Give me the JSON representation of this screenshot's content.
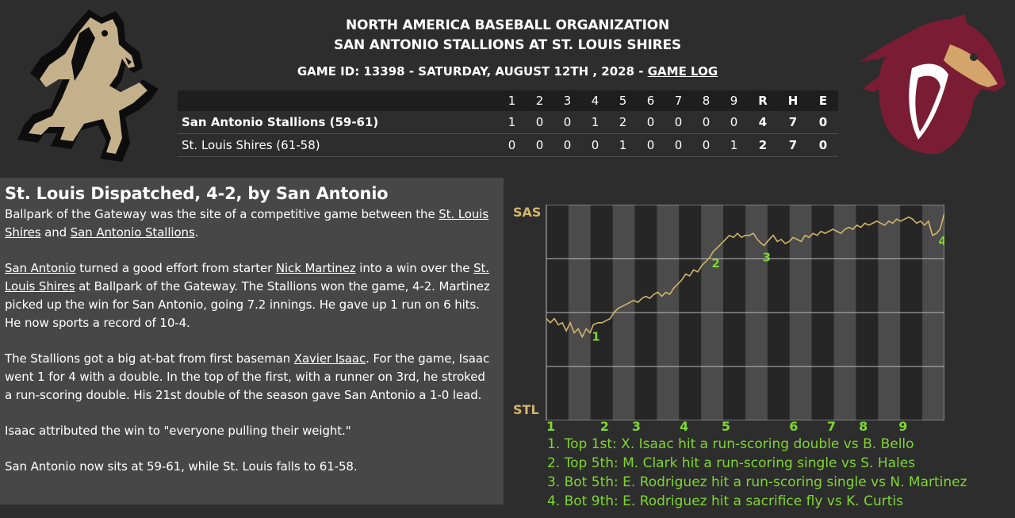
{
  "header": {
    "org": "NORTH AMERICA BASEBALL ORGANIZATION",
    "matchup": "SAN ANTONIO STALLIONS AT ST. LOUIS SHIRES",
    "game_info": "GAME ID: 13398 - SATURDAY, AUGUST 12TH , 2028 -",
    "game_log_link": "GAME LOG"
  },
  "logos": {
    "away_icon": "stallion-logo-gold",
    "home_icon": "stallion-logo-maroon",
    "away_color": "#c4b08a",
    "home_color": "#7a1c34"
  },
  "linescore": {
    "columns": [
      "1",
      "2",
      "3",
      "4",
      "5",
      "6",
      "7",
      "8",
      "9",
      "R",
      "H",
      "E"
    ],
    "rows": [
      {
        "team": "San Antonio Stallions (59-61)",
        "innings": [
          "1",
          "0",
          "0",
          "1",
          "2",
          "0",
          "0",
          "0",
          "0"
        ],
        "r": "4",
        "h": "7",
        "e": "0"
      },
      {
        "team": "St. Louis Shires (61-58)",
        "innings": [
          "0",
          "0",
          "0",
          "0",
          "1",
          "0",
          "0",
          "0",
          "1"
        ],
        "r": "2",
        "h": "7",
        "e": "0"
      }
    ]
  },
  "story": {
    "headline": "St. Louis Dispatched, 4-2, by San Antonio",
    "p1_a": "Ballpark of the Gateway was the site of a competitive game between the ",
    "p1_link1": "St. Louis Shires",
    "p1_b": " and ",
    "p1_link2": "San Antonio Stallions",
    "p1_c": ".",
    "p2_link1": "San Antonio",
    "p2_a": " turned a good effort from starter ",
    "p2_link2": "Nick Martinez",
    "p2_b": " into a win over the ",
    "p2_link3": "St. Louis Shires",
    "p2_c": " at Ballpark of the Gateway. The Stallions won the game, 4-2. Martinez picked up the win for San Antonio, going 7.2 innings. He gave up 1 run on 6 hits. He now sports a record of 10-4.",
    "p3_a": "The Stallions got a big at-bat from first baseman ",
    "p3_link": "Xavier Isaac",
    "p3_b": ". For the game, Isaac went 1 for 4 with a double. In the top of the first, with a runner on 3rd, he stroked a run-scoring double. His 21st double of the season gave San Antonio a 1-0 lead.",
    "p4": "Isaac attributed the win to \"everyone pulling their weight.\"",
    "p5": "San Antonio now sits at 59-61, while St. Louis falls to 61-58."
  },
  "win_prob_graph": {
    "top_label": "SAS",
    "bottom_label": "STL",
    "line_color": "#d3b56a",
    "marker_color": "#7fd631",
    "inning_labels": [
      "1",
      "2",
      "3",
      "4",
      "5",
      "6",
      "7",
      "8",
      "9"
    ],
    "markers": [
      {
        "label": "1",
        "position": 0.118
      },
      {
        "label": "2",
        "position": 0.419
      },
      {
        "label": "3",
        "position": 0.547
      },
      {
        "label": "4",
        "position": 0.989
      }
    ],
    "series": [
      [
        0.0,
        0.47
      ],
      [
        0.01,
        0.45
      ],
      [
        0.02,
        0.47
      ],
      [
        0.03,
        0.44
      ],
      [
        0.04,
        0.45
      ],
      [
        0.05,
        0.41
      ],
      [
        0.06,
        0.45
      ],
      [
        0.07,
        0.4
      ],
      [
        0.08,
        0.42
      ],
      [
        0.09,
        0.38
      ],
      [
        0.1,
        0.42
      ],
      [
        0.11,
        0.4
      ],
      [
        0.118,
        0.44
      ],
      [
        0.13,
        0.45
      ],
      [
        0.14,
        0.45
      ],
      [
        0.15,
        0.46
      ],
      [
        0.16,
        0.47
      ],
      [
        0.17,
        0.5
      ],
      [
        0.18,
        0.52
      ],
      [
        0.19,
        0.53
      ],
      [
        0.2,
        0.54
      ],
      [
        0.21,
        0.55
      ],
      [
        0.22,
        0.56
      ],
      [
        0.23,
        0.55
      ],
      [
        0.24,
        0.57
      ],
      [
        0.25,
        0.58
      ],
      [
        0.26,
        0.57
      ],
      [
        0.27,
        0.59
      ],
      [
        0.28,
        0.6
      ],
      [
        0.29,
        0.58
      ],
      [
        0.3,
        0.6
      ],
      [
        0.31,
        0.59
      ],
      [
        0.32,
        0.62
      ],
      [
        0.33,
        0.64
      ],
      [
        0.34,
        0.66
      ],
      [
        0.35,
        0.69
      ],
      [
        0.36,
        0.68
      ],
      [
        0.37,
        0.71
      ],
      [
        0.38,
        0.7
      ],
      [
        0.39,
        0.73
      ],
      [
        0.4,
        0.75
      ],
      [
        0.41,
        0.77
      ],
      [
        0.419,
        0.8
      ],
      [
        0.43,
        0.82
      ],
      [
        0.44,
        0.84
      ],
      [
        0.45,
        0.86
      ],
      [
        0.46,
        0.88
      ],
      [
        0.47,
        0.87
      ],
      [
        0.48,
        0.89
      ],
      [
        0.49,
        0.87
      ],
      [
        0.5,
        0.88
      ],
      [
        0.51,
        0.88
      ],
      [
        0.52,
        0.89
      ],
      [
        0.53,
        0.86
      ],
      [
        0.54,
        0.84
      ],
      [
        0.547,
        0.83
      ],
      [
        0.56,
        0.86
      ],
      [
        0.57,
        0.88
      ],
      [
        0.58,
        0.85
      ],
      [
        0.59,
        0.86
      ],
      [
        0.6,
        0.84
      ],
      [
        0.61,
        0.85
      ],
      [
        0.62,
        0.87
      ],
      [
        0.63,
        0.86
      ],
      [
        0.64,
        0.85
      ],
      [
        0.65,
        0.88
      ],
      [
        0.66,
        0.87
      ],
      [
        0.67,
        0.89
      ],
      [
        0.68,
        0.88
      ],
      [
        0.69,
        0.9
      ],
      [
        0.7,
        0.89
      ],
      [
        0.71,
        0.9
      ],
      [
        0.72,
        0.91
      ],
      [
        0.73,
        0.9
      ],
      [
        0.74,
        0.89
      ],
      [
        0.75,
        0.91
      ],
      [
        0.76,
        0.92
      ],
      [
        0.77,
        0.91
      ],
      [
        0.78,
        0.93
      ],
      [
        0.79,
        0.92
      ],
      [
        0.8,
        0.94
      ],
      [
        0.81,
        0.93
      ],
      [
        0.82,
        0.94
      ],
      [
        0.83,
        0.95
      ],
      [
        0.84,
        0.94
      ],
      [
        0.85,
        0.93
      ],
      [
        0.86,
        0.95
      ],
      [
        0.87,
        0.94
      ],
      [
        0.88,
        0.96
      ],
      [
        0.89,
        0.95
      ],
      [
        0.9,
        0.96
      ],
      [
        0.91,
        0.97
      ],
      [
        0.92,
        0.96
      ],
      [
        0.93,
        0.94
      ],
      [
        0.94,
        0.95
      ],
      [
        0.95,
        0.93
      ],
      [
        0.96,
        0.95
      ],
      [
        0.97,
        0.88
      ],
      [
        0.98,
        0.89
      ],
      [
        0.989,
        0.91
      ],
      [
        1.0,
        0.99
      ]
    ]
  },
  "legend": [
    "1. Top 1st: X. Isaac hit a run-scoring double vs B. Bello",
    "2. Top 5th: M. Clark hit a run-scoring single vs S. Hales",
    "3. Bot 5th: E. Rodriguez hit a run-scoring single vs N. Martinez",
    "4. Bot 9th: E. Rodriguez hit a sacrifice fly vs K. Curtis"
  ]
}
